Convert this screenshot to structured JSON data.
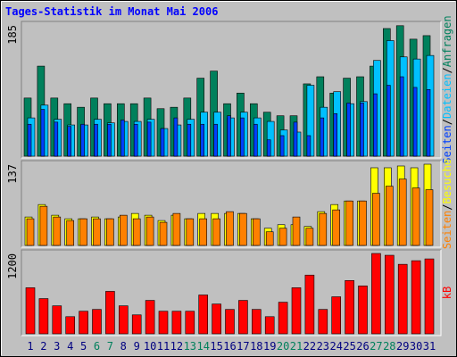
{
  "legend_separator": "/",
  "chart_data": [
    {
      "type": "bar",
      "title": "Tages-Statistik im Monat Mai 2006",
      "ylim": [
        0,
        185
      ],
      "yticks": [
        185
      ],
      "series": [
        {
          "name": "Anfragen",
          "color": "#00805c",
          "values": [
            82,
            127,
            82,
            74,
            69,
            82,
            74,
            74,
            74,
            82,
            67,
            69,
            82,
            110,
            120,
            74,
            89,
            74,
            62,
            57,
            57,
            102,
            112,
            89,
            110,
            112,
            127,
            180,
            184,
            165,
            170
          ]
        },
        {
          "name": "Dateien",
          "color": "#00c0ff",
          "values": [
            54,
            72,
            52,
            44,
            44,
            52,
            47,
            49,
            49,
            52,
            39,
            44,
            52,
            62,
            62,
            54,
            62,
            54,
            49,
            37,
            34,
            100,
            69,
            91,
            74,
            77,
            135,
            163,
            140,
            137,
            142
          ]
        },
        {
          "name": "Seiten",
          "color": "#0040ff",
          "values": [
            45,
            66,
            48,
            42,
            45,
            45,
            45,
            51,
            45,
            48,
            39,
            54,
            45,
            45,
            45,
            57,
            54,
            45,
            23,
            29,
            48,
            29,
            54,
            60,
            75,
            75,
            88,
            100,
            112,
            97,
            94
          ]
        }
      ]
    },
    {
      "type": "bar",
      "ylim": [
        0,
        137
      ],
      "yticks": [
        137
      ],
      "series": [
        {
          "name": "Besuche",
          "color": "#ffff00",
          "values": [
            48,
            69,
            51,
            45,
            45,
            48,
            45,
            48,
            54,
            51,
            42,
            51,
            45,
            54,
            54,
            54,
            54,
            45,
            29,
            35,
            35,
            32,
            57,
            69,
            75,
            75,
            131,
            131,
            134,
            131,
            137
          ]
        },
        {
          "name": "Seiten",
          "color": "#ff8000",
          "values": [
            45,
            66,
            48,
            42,
            45,
            45,
            45,
            51,
            45,
            48,
            39,
            54,
            45,
            45,
            45,
            57,
            54,
            45,
            23,
            29,
            48,
            29,
            54,
            60,
            75,
            75,
            88,
            100,
            112,
            97,
            94
          ]
        }
      ]
    },
    {
      "type": "bar",
      "ylim": [
        0,
        1200
      ],
      "yticks": [
        1200
      ],
      "categories": [
        "1",
        "2",
        "3",
        "4",
        "5",
        "6",
        "7",
        "8",
        "9",
        "10",
        "11",
        "12",
        "13",
        "14",
        "15",
        "16",
        "17",
        "18",
        "19",
        "20",
        "21",
        "22",
        "23",
        "24",
        "25",
        "26",
        "27",
        "28",
        "29",
        "30",
        "31"
      ],
      "category_colors": [
        "#000080",
        "#000080",
        "#000080",
        "#000080",
        "#000080",
        "#00805c",
        "#00805c",
        "#000080",
        "#000080",
        "#000080",
        "#000080",
        "#000080",
        "#00805c",
        "#00805c",
        "#000080",
        "#000080",
        "#000080",
        "#000080",
        "#000080",
        "#00805c",
        "#00805c",
        "#000080",
        "#000080",
        "#000080",
        "#000080",
        "#000080",
        "#00805c",
        "#00805c",
        "#000080",
        "#000080",
        "#000080"
      ],
      "series": [
        {
          "name": "kB",
          "color": "#ff0000",
          "values": [
            688,
            526,
            418,
            256,
            337,
            364,
            634,
            418,
            283,
            499,
            337,
            337,
            337,
            580,
            445,
            364,
            499,
            364,
            256,
            472,
            688,
            877,
            364,
            553,
            796,
            715,
            1200,
            1173,
            1038,
            1092,
            1119
          ]
        }
      ]
    }
  ]
}
